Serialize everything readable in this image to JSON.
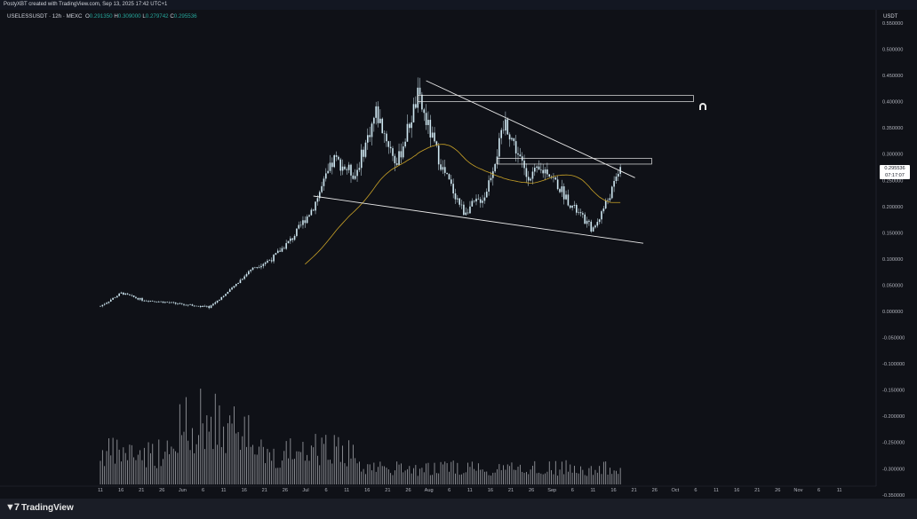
{
  "header": {
    "attribution": "PostyXBT created with TradingView.com, Sep 13, 2025 17:42 UTC+1"
  },
  "symbol": {
    "name": "USELESSUSDT · 12h · MEXC",
    "o_label": "O",
    "o_value": "0.291350",
    "h_label": "H",
    "h_value": "0.309000",
    "l_label": "L",
    "l_value": "0.279742",
    "c_label": "C",
    "c_value": "0.295536"
  },
  "price_axis": {
    "currency": "USDT",
    "ticks": [
      "0.550000",
      "0.500000",
      "0.450000",
      "0.400000",
      "0.350000",
      "0.300000",
      "0.250000",
      "0.200000",
      "0.150000",
      "0.100000",
      "0.050000",
      "0.000000",
      "-0.050000",
      "-0.100000",
      "-0.150000",
      "-0.200000",
      "-0.250000",
      "-0.300000",
      "-0.350000"
    ],
    "last_price": "0.295536",
    "countdown": "07:17:07"
  },
  "time_axis": {
    "ticks": [
      "11",
      "16",
      "21",
      "26",
      "Jun",
      "6",
      "11",
      "16",
      "21",
      "26",
      "Jul",
      "6",
      "11",
      "16",
      "21",
      "26",
      "Aug",
      "6",
      "11",
      "16",
      "21",
      "26",
      "Sep",
      "6",
      "11",
      "16",
      "21",
      "26",
      "Oct",
      "6",
      "11",
      "16",
      "21",
      "26",
      "Nov",
      "6",
      "11"
    ]
  },
  "footer": {
    "brand": "TradingView",
    "logo_icon": "tradingview-logo-icon"
  },
  "colors": {
    "background": "#0f1117",
    "candle": "#cfe8f2",
    "ma": "#c9a227",
    "trendline": "#e8e8e8",
    "volume": "#c7c9cf"
  },
  "chart_data": {
    "type": "candlestick",
    "price_axis_range": [
      -0.35,
      0.56
    ],
    "moving_average_color": "#c9a227",
    "close_path": [
      [
        "May 11",
        0.01
      ],
      [
        "May 16",
        0.035
      ],
      [
        "May 21",
        0.022
      ],
      [
        "May 26",
        0.018
      ],
      [
        "Jun 1",
        0.012
      ],
      [
        "Jun 6",
        0.008
      ],
      [
        "Jun 11",
        0.04
      ],
      [
        "Jun 16",
        0.08
      ],
      [
        "Jun 21",
        0.1
      ],
      [
        "Jun 26",
        0.14
      ],
      [
        "Jul 1",
        0.2
      ],
      [
        "Jul 6",
        0.29
      ],
      [
        "Jul 11",
        0.26
      ],
      [
        "Jul 16",
        0.38
      ],
      [
        "Jul 21",
        0.28
      ],
      [
        "Jul 26",
        0.41
      ],
      [
        "Aug 1",
        0.27
      ],
      [
        "Aug 6",
        0.19
      ],
      [
        "Aug 11",
        0.22
      ],
      [
        "Aug 16",
        0.36
      ],
      [
        "Aug 21",
        0.26
      ],
      [
        "Aug 26",
        0.27
      ],
      [
        "Sep 1",
        0.2
      ],
      [
        "Sep 6",
        0.155
      ],
      [
        "Sep 11",
        0.24
      ],
      [
        "Sep 13",
        0.295536
      ]
    ],
    "upper_trendline": [
      [
        "Jul 28",
        0.44
      ],
      [
        "Sep 16",
        0.255
      ]
    ],
    "lower_trendline": [
      [
        "Jul 1",
        0.22
      ],
      [
        "Sep 18",
        0.13
      ]
    ],
    "horizontal_zones": [
      {
        "from": "Jul 26",
        "to": "Sep 30",
        "top": 0.412,
        "bottom": 0.4
      },
      {
        "from": "Aug 14",
        "to": "Sep 20",
        "top": 0.292,
        "bottom": 0.281
      }
    ]
  }
}
